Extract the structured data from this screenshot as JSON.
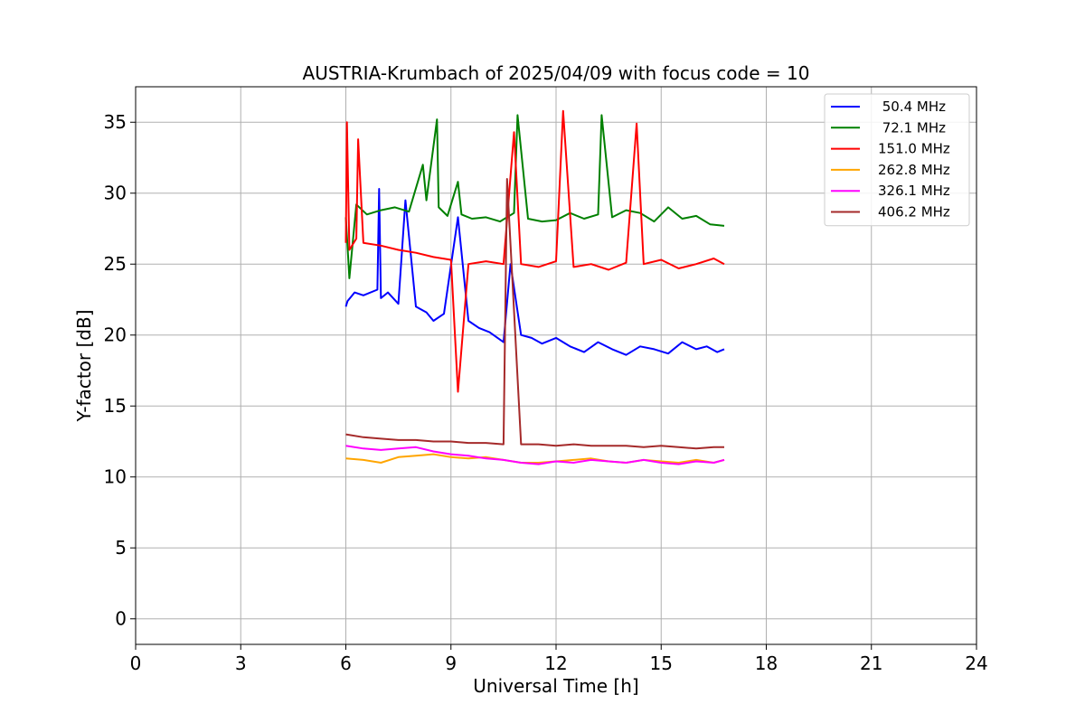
{
  "chart_data": {
    "type": "line",
    "title": "AUSTRIA-Krumbach of 2025/04/09 with focus code = 10",
    "xlabel": "Universal Time [h]",
    "ylabel": "Y-factor [dB]",
    "xlim": [
      0,
      24
    ],
    "ylim": [
      -1.8,
      37.5
    ],
    "xticks": [
      0,
      3,
      6,
      9,
      12,
      15,
      18,
      21,
      24
    ],
    "yticks": [
      0,
      5,
      10,
      15,
      20,
      25,
      30,
      35
    ],
    "grid": true,
    "legend_position": "top-right",
    "series": [
      {
        "name": " 50.4 MHz",
        "color": "#0000ff",
        "x": [
          6.0,
          6.05,
          6.25,
          6.5,
          6.9,
          6.95,
          7.0,
          7.2,
          7.5,
          7.7,
          8.0,
          8.3,
          8.5,
          8.8,
          9.2,
          9.5,
          9.8,
          10.1,
          10.5,
          10.7,
          11.0,
          11.3,
          11.6,
          12.0,
          12.4,
          12.8,
          13.2,
          13.6,
          14.0,
          14.4,
          14.8,
          15.2,
          15.6,
          16.0,
          16.3,
          16.6,
          16.8
        ],
        "y": [
          22.0,
          22.4,
          23.0,
          22.8,
          23.2,
          30.3,
          22.6,
          23.0,
          22.2,
          29.5,
          22.0,
          21.6,
          21.0,
          21.5,
          28.3,
          21.0,
          20.5,
          20.2,
          19.5,
          25.0,
          20.0,
          19.8,
          19.4,
          19.8,
          19.2,
          18.8,
          19.5,
          19.0,
          18.6,
          19.2,
          19.0,
          18.7,
          19.5,
          19.0,
          19.2,
          18.8,
          19.0
        ]
      },
      {
        "name": " 72.1 MHz",
        "color": "#008000",
        "x": [
          6.0,
          6.1,
          6.3,
          6.6,
          7.0,
          7.4,
          7.8,
          8.2,
          8.3,
          8.6,
          8.65,
          8.9,
          9.2,
          9.3,
          9.6,
          10.0,
          10.4,
          10.8,
          10.9,
          11.2,
          11.6,
          12.0,
          12.4,
          12.8,
          13.2,
          13.3,
          13.6,
          14.0,
          14.4,
          14.8,
          15.2,
          15.6,
          16.0,
          16.4,
          16.8
        ],
        "y": [
          28.3,
          24.0,
          29.2,
          28.5,
          28.8,
          29.0,
          28.7,
          32.0,
          29.5,
          35.2,
          29.0,
          28.4,
          30.8,
          28.5,
          28.2,
          28.3,
          28.0,
          28.6,
          35.5,
          28.2,
          28.0,
          28.1,
          28.6,
          28.2,
          28.5,
          35.5,
          28.3,
          28.8,
          28.6,
          28.0,
          29.0,
          28.2,
          28.4,
          27.8,
          27.7
        ]
      },
      {
        "name": "151.0 MHz",
        "color": "#ff0000",
        "x": [
          6.0,
          6.03,
          6.1,
          6.3,
          6.35,
          6.5,
          7.0,
          7.5,
          8.0,
          8.5,
          9.0,
          9.2,
          9.5,
          10.0,
          10.5,
          10.8,
          11.0,
          11.5,
          12.0,
          12.2,
          12.5,
          13.0,
          13.5,
          14.0,
          14.3,
          14.5,
          15.0,
          15.5,
          16.0,
          16.5,
          16.8
        ],
        "y": [
          26.5,
          35.0,
          26.0,
          26.8,
          33.8,
          26.5,
          26.3,
          26.0,
          25.8,
          25.5,
          25.3,
          16.0,
          25.0,
          25.2,
          25.0,
          34.3,
          25.0,
          24.8,
          25.2,
          35.8,
          24.8,
          25.0,
          24.6,
          25.1,
          34.9,
          25.0,
          25.3,
          24.7,
          25.0,
          25.4,
          25.0
        ]
      },
      {
        "name": "262.8 MHz",
        "color": "#ffa500",
        "x": [
          6.0,
          6.5,
          7.0,
          7.5,
          8.0,
          8.5,
          9.0,
          9.5,
          10.0,
          10.5,
          11.0,
          11.5,
          12.0,
          12.5,
          13.0,
          13.5,
          14.0,
          14.5,
          15.0,
          15.5,
          16.0,
          16.5,
          16.8
        ],
        "y": [
          11.3,
          11.2,
          11.0,
          11.4,
          11.5,
          11.6,
          11.4,
          11.3,
          11.4,
          11.2,
          11.0,
          11.0,
          11.1,
          11.2,
          11.3,
          11.1,
          11.0,
          11.2,
          11.1,
          11.0,
          11.2,
          11.0,
          11.2
        ]
      },
      {
        "name": "326.1 MHz",
        "color": "#ff00ff",
        "x": [
          6.0,
          6.5,
          7.0,
          7.5,
          8.0,
          8.5,
          9.0,
          9.5,
          10.0,
          10.5,
          11.0,
          11.5,
          12.0,
          12.5,
          13.0,
          13.5,
          14.0,
          14.5,
          15.0,
          15.5,
          16.0,
          16.5,
          16.8
        ],
        "y": [
          12.2,
          12.0,
          11.9,
          12.0,
          12.1,
          11.8,
          11.6,
          11.5,
          11.3,
          11.2,
          11.0,
          10.9,
          11.1,
          11.0,
          11.2,
          11.1,
          11.0,
          11.2,
          11.0,
          10.9,
          11.1,
          11.0,
          11.2
        ]
      },
      {
        "name": "406.2 MHz",
        "color": "#a52a2a",
        "x": [
          6.0,
          6.5,
          7.0,
          7.5,
          8.0,
          8.5,
          9.0,
          9.5,
          10.0,
          10.5,
          10.6,
          11.0,
          11.5,
          12.0,
          12.5,
          13.0,
          13.5,
          14.0,
          14.5,
          15.0,
          15.5,
          16.0,
          16.5,
          16.8
        ],
        "y": [
          13.0,
          12.8,
          12.7,
          12.6,
          12.6,
          12.5,
          12.5,
          12.4,
          12.4,
          12.3,
          31.0,
          12.3,
          12.3,
          12.2,
          12.3,
          12.2,
          12.2,
          12.2,
          12.1,
          12.2,
          12.1,
          12.0,
          12.1,
          12.1
        ]
      }
    ]
  }
}
